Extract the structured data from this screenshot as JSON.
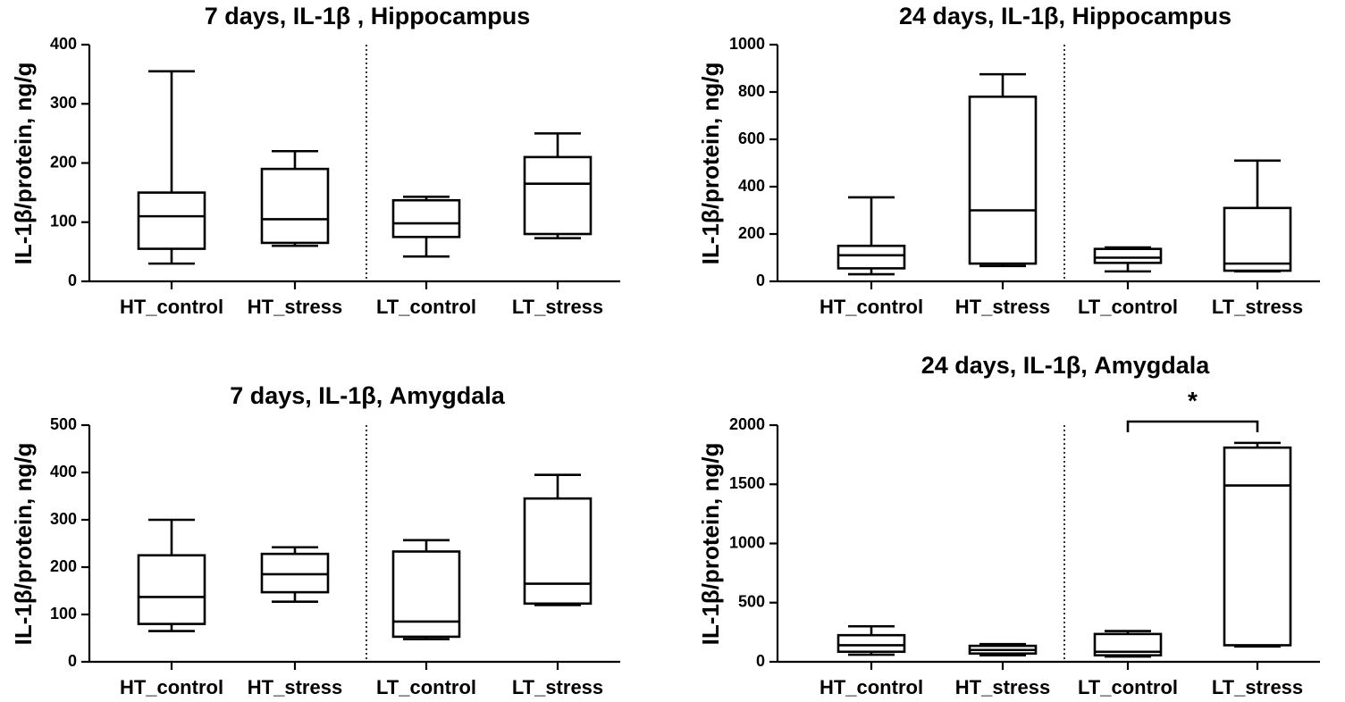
{
  "chart_data": [
    {
      "type": "boxplot",
      "title": "7 days, IL-1β , Hippocampus",
      "ylabel": "IL-1β/protein, ng/g",
      "xlabel": "",
      "ylim": [
        0,
        400
      ],
      "yticks": [
        0,
        100,
        200,
        300,
        400
      ],
      "categories": [
        "HT_control",
        "HT_stress",
        "LT_control",
        "LT_stress"
      ],
      "boxes": [
        {
          "min": 30,
          "q1": 55,
          "median": 110,
          "q3": 150,
          "max": 355
        },
        {
          "min": 60,
          "q1": 65,
          "median": 105,
          "q3": 190,
          "max": 220
        },
        {
          "min": 42,
          "q1": 75,
          "median": 98,
          "q3": 137,
          "max": 143
        },
        {
          "min": 73,
          "q1": 80,
          "median": 165,
          "q3": 210,
          "max": 250
        }
      ],
      "divider_between": [
        2,
        3
      ],
      "significance": []
    },
    {
      "type": "boxplot",
      "title": "24 days, IL-1β, Hippocampus",
      "ylabel": "IL-1β/protein, ng/g",
      "xlabel": "",
      "ylim": [
        0,
        1000
      ],
      "yticks": [
        0,
        200,
        400,
        600,
        800,
        1000
      ],
      "categories": [
        "HT_control",
        "HT_stress",
        "LT_control",
        "LT_stress"
      ],
      "boxes": [
        {
          "min": 30,
          "q1": 55,
          "median": 110,
          "q3": 150,
          "max": 355
        },
        {
          "min": 65,
          "q1": 75,
          "median": 300,
          "q3": 780,
          "max": 875
        },
        {
          "min": 42,
          "q1": 78,
          "median": 100,
          "q3": 137,
          "max": 143
        },
        {
          "min": 42,
          "q1": 45,
          "median": 75,
          "q3": 310,
          "max": 510
        }
      ],
      "divider_between": [
        2,
        3
      ],
      "significance": []
    },
    {
      "type": "boxplot",
      "title": "7 days, IL-1β, Amygdala",
      "ylabel": "IL-1β/protein, ng/g",
      "xlabel": "",
      "ylim": [
        0,
        500
      ],
      "yticks": [
        0,
        100,
        200,
        300,
        400,
        500
      ],
      "categories": [
        "HT_control",
        "HT_stress",
        "LT_control",
        "LT_stress"
      ],
      "boxes": [
        {
          "min": 65,
          "q1": 80,
          "median": 137,
          "q3": 225,
          "max": 300
        },
        {
          "min": 127,
          "q1": 147,
          "median": 185,
          "q3": 228,
          "max": 242
        },
        {
          "min": 48,
          "q1": 53,
          "median": 85,
          "q3": 233,
          "max": 257
        },
        {
          "min": 120,
          "q1": 123,
          "median": 165,
          "q3": 345,
          "max": 395
        }
      ],
      "divider_between": [
        2,
        3
      ],
      "significance": []
    },
    {
      "type": "boxplot",
      "title": "24 days, IL-1β, Amygdala",
      "ylabel": "IL-1β/protein, ng/g",
      "xlabel": "",
      "ylim": [
        0,
        2000
      ],
      "yticks": [
        0,
        500,
        1000,
        1500,
        2000
      ],
      "categories": [
        "HT_control",
        "HT_stress",
        "LT_control",
        "LT_stress"
      ],
      "boxes": [
        {
          "min": 60,
          "q1": 85,
          "median": 140,
          "q3": 225,
          "max": 300
        },
        {
          "min": 55,
          "q1": 70,
          "median": 100,
          "q3": 135,
          "max": 150
        },
        {
          "min": 45,
          "q1": 55,
          "median": 85,
          "q3": 235,
          "max": 260
        },
        {
          "min": 130,
          "q1": 140,
          "median": 1490,
          "q3": 1810,
          "max": 1850
        }
      ],
      "divider_between": [
        2,
        3
      ],
      "significance": [
        {
          "from": 2,
          "to": 3,
          "label": "*"
        }
      ]
    }
  ]
}
